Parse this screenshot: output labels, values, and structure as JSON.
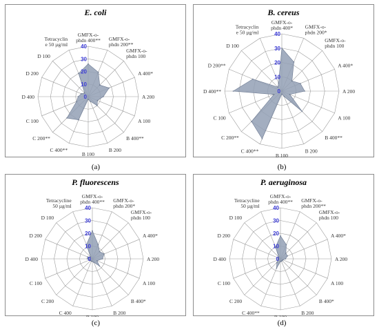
{
  "chart_data": [
    {
      "type": "radar",
      "title": "E. coli",
      "caption": "(a)",
      "rmax": 40,
      "rticks": [
        0,
        10,
        20,
        30,
        40
      ],
      "categories": [
        "GMFX-o-phdn 400**",
        "GMFX-o-phdn 200**",
        "GMFX-o-phdn 100",
        "A 400*",
        "A 200",
        "A 100",
        "B 400**",
        "B 200",
        "B 100",
        "C 400**",
        "C 200**",
        "C 100",
        "D 400",
        "D 200",
        "D 100",
        "Tetracyclin e 50 µg/ml"
      ],
      "values": [
        26,
        21,
        13,
        18,
        12,
        8,
        10,
        4,
        2,
        20,
        24,
        10,
        8,
        6,
        4,
        20
      ]
    },
    {
      "type": "radar",
      "title": "B. cereus",
      "caption": "(b)",
      "rmax": 40,
      "rticks": [
        0,
        10,
        20,
        30,
        40
      ],
      "categories": [
        "GMFX-o-phdn 400*",
        "GMFX-o-phdn 200*",
        "GMFX-o-phdn 100",
        "A 400*",
        "A 200",
        "A 100",
        "B 400**",
        "B 200",
        "B 100",
        "C 400**",
        "C 200**",
        "C 100",
        "D 400**",
        "D 200**",
        "D 100",
        "Tetracyclin e 50 µg/ml"
      ],
      "values": [
        30,
        22,
        10,
        14,
        16,
        6,
        20,
        4,
        2,
        36,
        30,
        6,
        34,
        22,
        4,
        6
      ]
    },
    {
      "type": "radar",
      "title": "P.  fluorescens",
      "caption": "(c)",
      "rmax": 40,
      "rticks": [
        0,
        10,
        20,
        30,
        40
      ],
      "categories": [
        "GMFX-o-phdn 400**",
        "GMFX-o-phdn 200*",
        "GMFX-o-phdn 100",
        "A 400*",
        "A 200",
        "A 100",
        "B 400*",
        "B 200",
        "B 100",
        "C 400",
        "C 200",
        "C 100",
        "D 400",
        "D 200",
        "D 100",
        "Tetracycline 50 µg/ml"
      ],
      "values": [
        22,
        12,
        8,
        10,
        8,
        4,
        8,
        3,
        2,
        2,
        2,
        2,
        4,
        4,
        2,
        12
      ]
    },
    {
      "type": "radar",
      "title": "P. aeruginosa",
      "caption": "(d)",
      "rmax": 40,
      "rticks": [
        0,
        10,
        20,
        30,
        40
      ],
      "categories": [
        "GMFX-o-phdn 400**",
        "GMFX-o-phdn 200**",
        "GMFX-o-phdn 100",
        "A 400*",
        "A 200",
        "A 100",
        "B 400*",
        "B 200",
        "B 100",
        "C 400**",
        "C 200",
        "C 100",
        "D 400",
        "D 200",
        "D 100",
        "Tetracycline 50 µg/ml"
      ],
      "values": [
        18,
        12,
        6,
        6,
        4,
        2,
        2,
        2,
        2,
        8,
        4,
        2,
        2,
        2,
        2,
        10
      ]
    }
  ]
}
